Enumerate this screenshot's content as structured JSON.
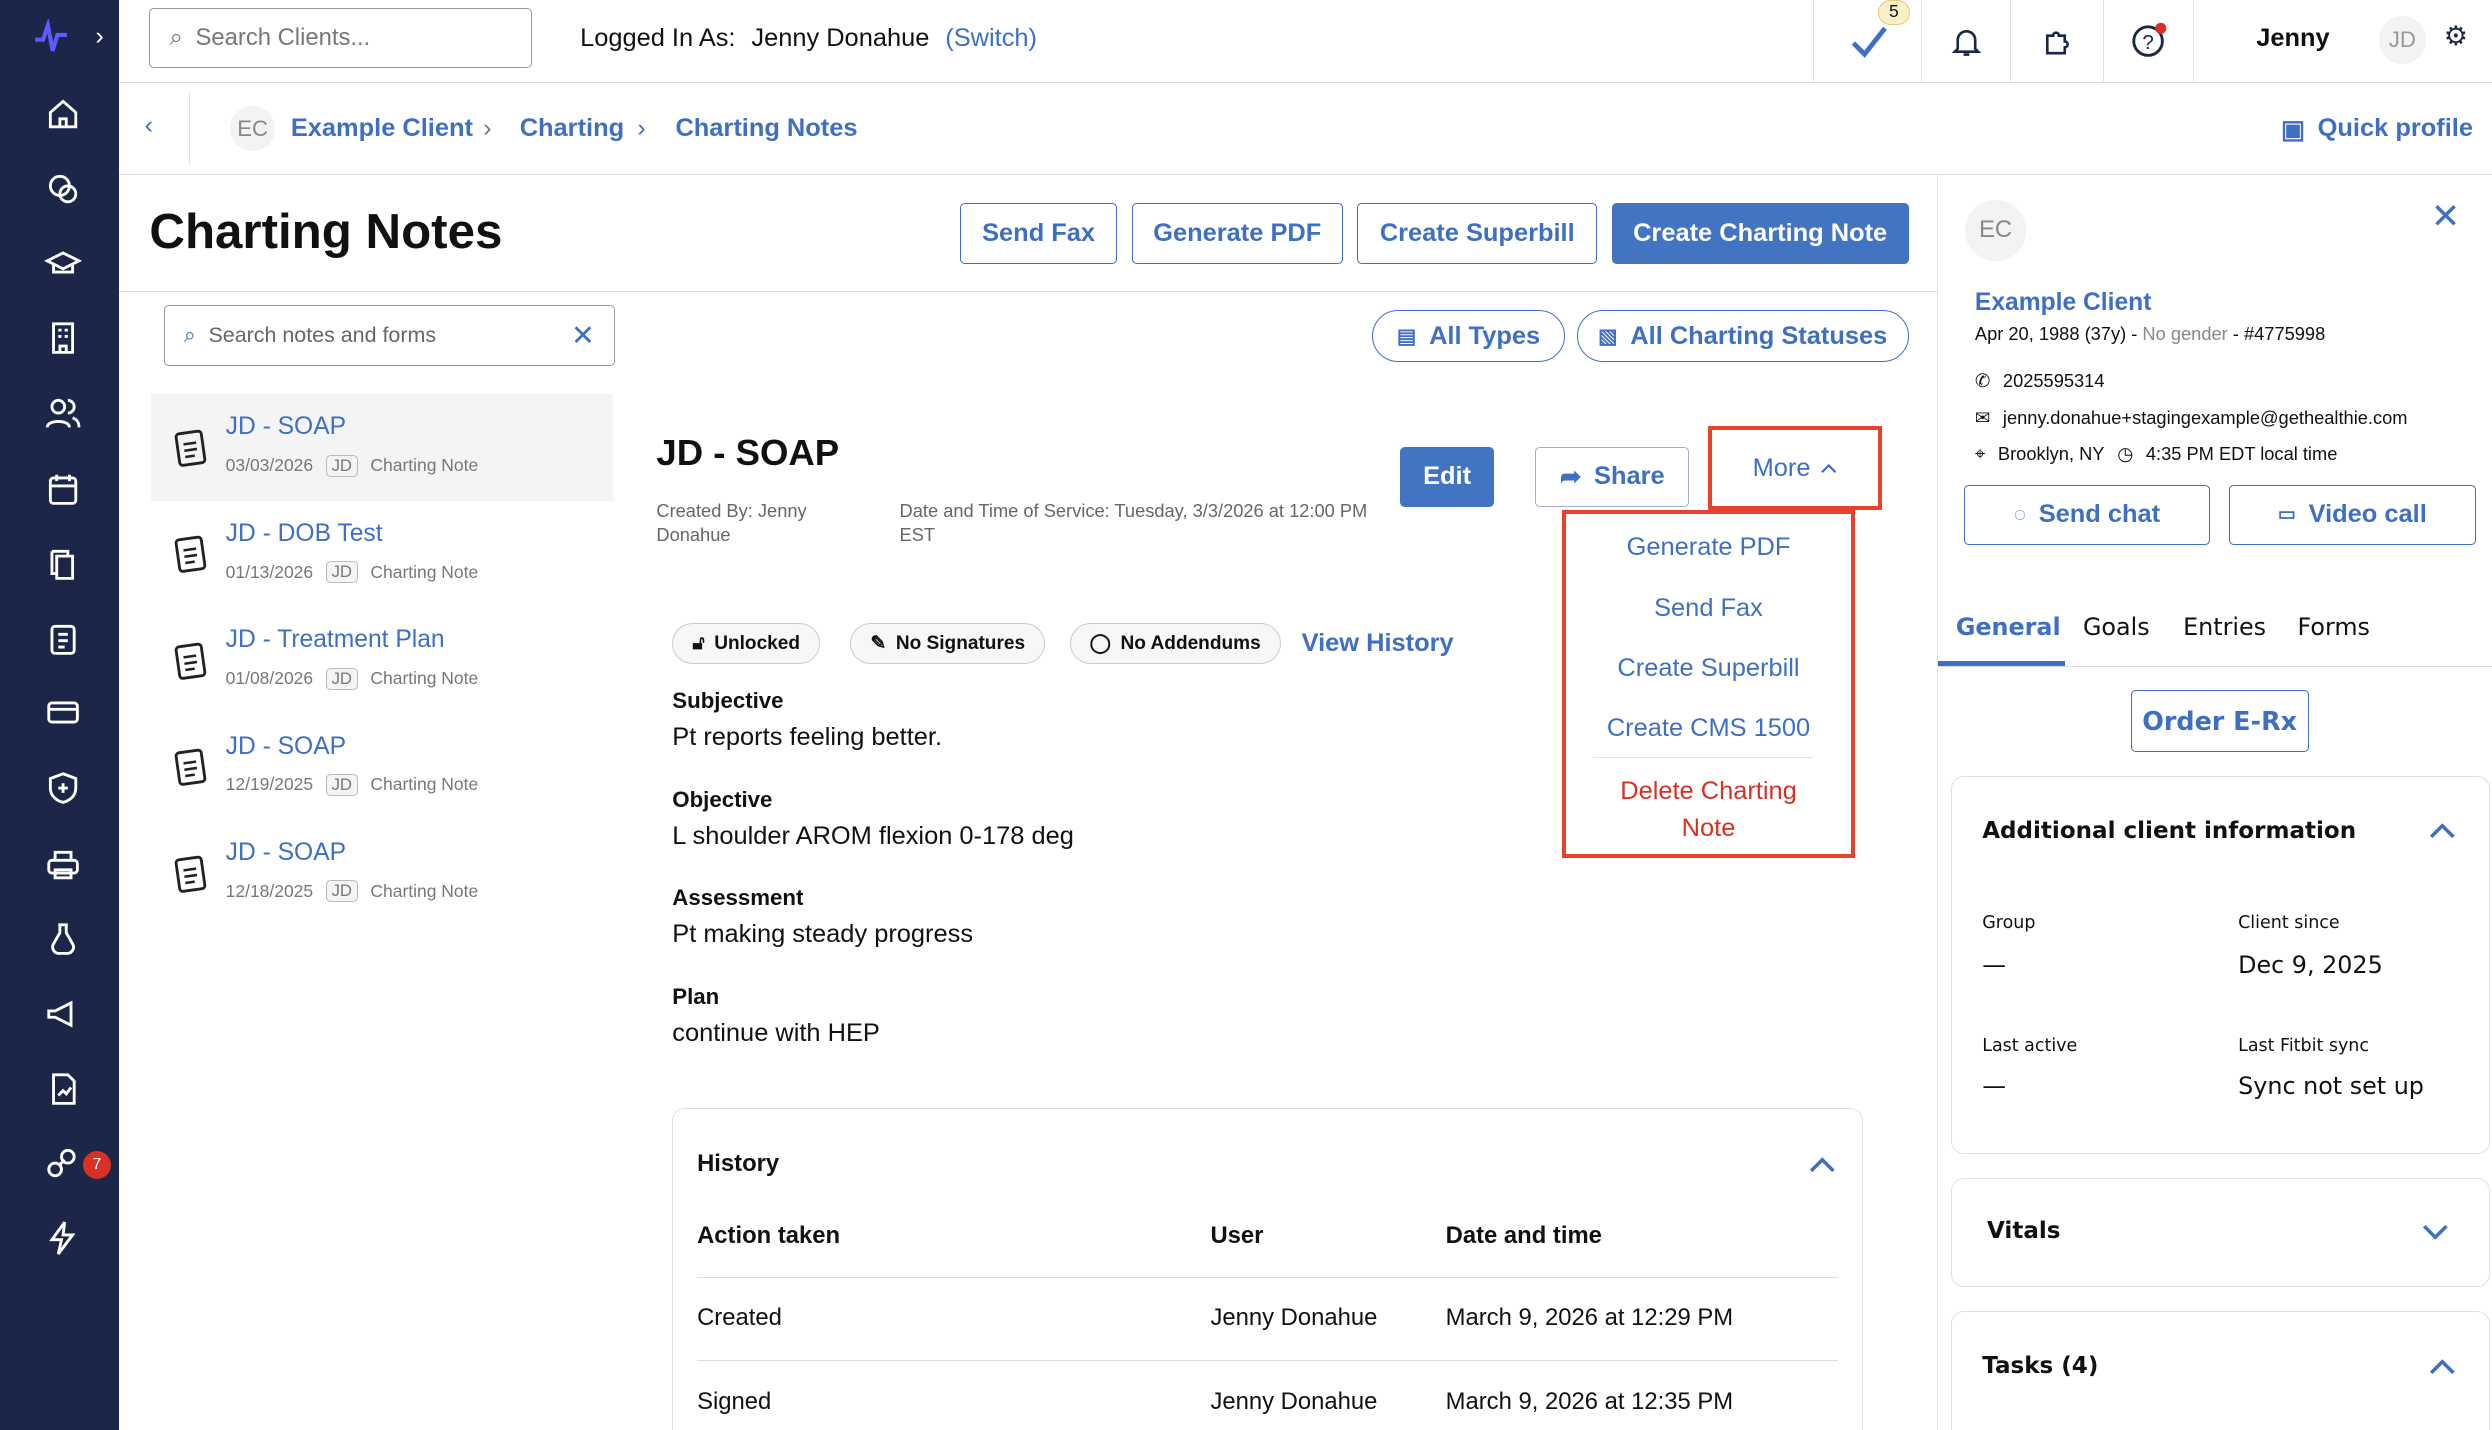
{
  "sidebar": {
    "badge_count": "7",
    "items": [
      "home",
      "chat",
      "education",
      "building",
      "clients",
      "calendar",
      "documents",
      "clipboard",
      "billing",
      "shield",
      "print",
      "lab",
      "announce",
      "reports",
      "integrations",
      "bolt"
    ]
  },
  "topbar": {
    "search_placeholder": "Search Clients...",
    "logged_in_label": "Logged In As:",
    "logged_in_user": "Jenny Donahue",
    "switch_label": "(Switch)",
    "tasks_count": "5",
    "user_name": "Jenny",
    "user_initials": "JD"
  },
  "breadcrumb": {
    "avatar": "EC",
    "items": [
      "Example Client",
      "Charting",
      "Charting Notes"
    ],
    "quick_profile": "Quick profile"
  },
  "page": {
    "title": "Charting Notes",
    "buttons": {
      "send_fax": "Send Fax",
      "generate_pdf": "Generate PDF",
      "create_superbill": "Create Superbill",
      "create_note": "Create Charting Note"
    }
  },
  "notes_search": {
    "placeholder": "Search notes and forms"
  },
  "filters": {
    "types": "All Types",
    "statuses": "All Charting Statuses"
  },
  "notes": [
    {
      "title": "JD - SOAP",
      "date": "03/03/2026",
      "initials": "JD",
      "type": "Charting Note",
      "selected": true
    },
    {
      "title": "JD - DOB Test",
      "date": "01/13/2026",
      "initials": "JD",
      "type": "Charting Note"
    },
    {
      "title": "JD - Treatment Plan",
      "date": "01/08/2026",
      "initials": "JD",
      "type": "Charting Note"
    },
    {
      "title": "JD - SOAP",
      "date": "12/19/2025",
      "initials": "JD",
      "type": "Charting Note"
    },
    {
      "title": "JD - SOAP",
      "date": "12/18/2025",
      "initials": "JD",
      "type": "Charting Note"
    }
  ],
  "detail": {
    "title": "JD - SOAP",
    "created_by": "Created By: Jenny Donahue",
    "service_time": "Date and Time of Service: Tuesday, 3/3/2026 at 12:00 PM EST",
    "edit": "Edit",
    "share": "Share",
    "more": "More",
    "chips": [
      "Unlocked",
      "No Signatures",
      "No Addendums"
    ],
    "view_history": "View History",
    "sections": [
      {
        "h": "Subjective",
        "v": "Pt reports feeling better."
      },
      {
        "h": "Objective",
        "v": "L shoulder AROM flexion 0-178 deg"
      },
      {
        "h": "Assessment",
        "v": "Pt making steady progress"
      },
      {
        "h": "Plan",
        "v": "continue with HEP"
      }
    ]
  },
  "more_menu": {
    "items": [
      "Generate PDF",
      "Send Fax",
      "Create Superbill",
      "Create CMS 1500"
    ],
    "delete": "Delete Charting Note",
    "highlight_color": "#e8412c"
  },
  "history": {
    "title": "History",
    "columns": [
      "Action taken",
      "User",
      "Date and time"
    ],
    "rows": [
      [
        "Created",
        "Jenny Donahue",
        "March 9, 2026 at 12:29 PM"
      ],
      [
        "Signed",
        "Jenny Donahue",
        "March 9, 2026 at 12:35 PM"
      ]
    ]
  },
  "client_panel": {
    "avatar": "EC",
    "name": "Example Client",
    "dob": "Apr 20, 1988 (37y)",
    "gender": "No gender",
    "id": "#4775998",
    "phone": "2025595314",
    "email": "jenny.donahue+stagingexample@gethealthie.com",
    "location": "Brooklyn, NY",
    "local_time": "4:35 PM EDT local time",
    "send_chat": "Send chat",
    "video_call": "Video call",
    "tabs": [
      "General",
      "Goals",
      "Entries",
      "Forms"
    ],
    "active_tab": "General",
    "order_erx": "Order E-Rx",
    "additional": {
      "title": "Additional client information",
      "fields": [
        {
          "label": "Group",
          "value": "—"
        },
        {
          "label": "Client since",
          "value": "Dec 9, 2025"
        },
        {
          "label": "Last active",
          "value": "—"
        },
        {
          "label": "Last Fitbit sync",
          "value": "Sync not set up"
        }
      ]
    },
    "vitals": "Vitals",
    "tasks": "Tasks (4)"
  },
  "colors": {
    "accent": "#4374c2",
    "sidebar": "#1b2648",
    "danger": "#d93025"
  }
}
